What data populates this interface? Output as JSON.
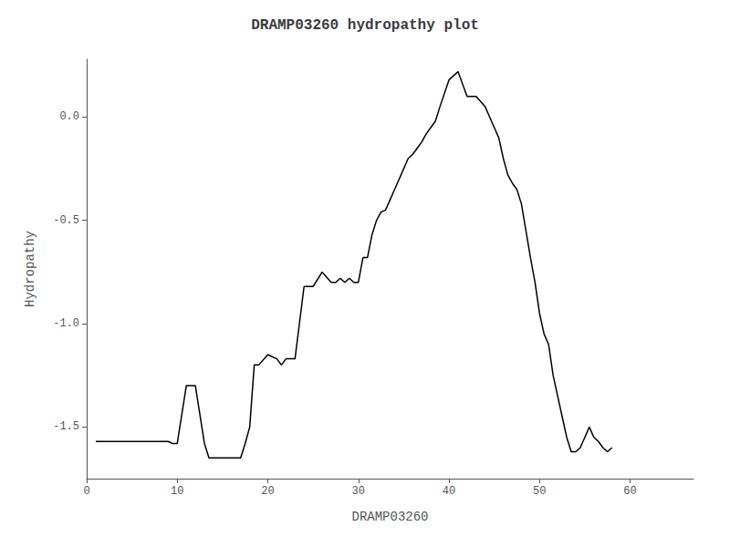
{
  "chart_data": {
    "type": "line",
    "title": "DRAMP03260 hydropathy plot",
    "xlabel": "DRAMP03260",
    "ylabel": "Hydropathy",
    "color": "#000000",
    "xlim": [
      0,
      67
    ],
    "ylim": [
      -1.75,
      0.28
    ],
    "xticks": [
      0,
      10,
      20,
      30,
      40,
      50,
      60
    ],
    "yticks": [
      {
        "value": 0.0,
        "label": "0.0"
      },
      -0.5,
      {
        "value": -1.0,
        "label": "-1.0"
      },
      -1.5
    ],
    "grid": false,
    "x": [
      1,
      2,
      3,
      4,
      5,
      6,
      7,
      8,
      9,
      9.5,
      10,
      11,
      12,
      13,
      13.5,
      14,
      15,
      16,
      17,
      17.5,
      18,
      18.5,
      19,
      20,
      21,
      21.5,
      22,
      22.5,
      23,
      24,
      24.5,
      25,
      26,
      27,
      27.5,
      28,
      28.5,
      29,
      29.5,
      30,
      30.5,
      31,
      31.5,
      32,
      32.5,
      33,
      33.5,
      34,
      34.5,
      35,
      35.5,
      36,
      36.5,
      37,
      37.5,
      38,
      38.5,
      39,
      40,
      41,
      42,
      43,
      44,
      44.5,
      45,
      45.5,
      46,
      46.5,
      47,
      47.5,
      48,
      48.5,
      49,
      49.5,
      50,
      50.5,
      51,
      51.5,
      52,
      52.5,
      53,
      53.5,
      54,
      54.5,
      55,
      55.5,
      56,
      56.5,
      57,
      57.5,
      58
    ],
    "values": [
      -1.57,
      -1.57,
      -1.57,
      -1.57,
      -1.57,
      -1.57,
      -1.57,
      -1.57,
      -1.57,
      -1.58,
      -1.58,
      -1.3,
      -1.3,
      -1.58,
      -1.65,
      -1.65,
      -1.65,
      -1.65,
      -1.65,
      -1.58,
      -1.5,
      -1.2,
      -1.2,
      -1.15,
      -1.17,
      -1.2,
      -1.17,
      -1.17,
      -1.17,
      -0.82,
      -0.82,
      -0.82,
      -0.75,
      -0.8,
      -0.8,
      -0.78,
      -0.8,
      -0.78,
      -0.8,
      -0.8,
      -0.68,
      -0.68,
      -0.57,
      -0.5,
      -0.46,
      -0.45,
      -0.4,
      -0.35,
      -0.3,
      -0.25,
      -0.2,
      -0.18,
      -0.15,
      -0.12,
      -0.08,
      -0.05,
      -0.02,
      0.05,
      0.18,
      0.22,
      0.1,
      0.1,
      0.05,
      0.0,
      -0.05,
      -0.1,
      -0.2,
      -0.28,
      -0.32,
      -0.35,
      -0.42,
      -0.55,
      -0.68,
      -0.8,
      -0.95,
      -1.05,
      -1.1,
      -1.25,
      -1.35,
      -1.45,
      -1.55,
      -1.62,
      -1.62,
      -1.6,
      -1.55,
      -1.5,
      -1.55,
      -1.57,
      -1.6,
      -1.62,
      -1.6
    ]
  }
}
